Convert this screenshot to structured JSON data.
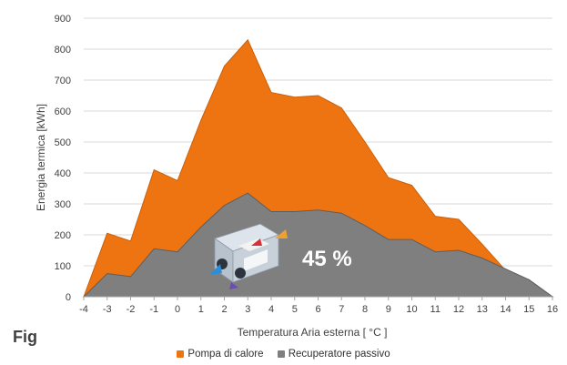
{
  "figure_label": "Fig",
  "chart_data": {
    "type": "area",
    "xlabel": "Temperatura Aria esterna [ °C ]",
    "ylabel": "Energia termica [kWh]",
    "x": [
      -4,
      -3,
      -2,
      -1,
      0,
      1,
      2,
      3,
      4,
      5,
      6,
      7,
      8,
      9,
      10,
      11,
      12,
      13,
      14,
      15,
      16
    ],
    "ylim": [
      0,
      900
    ],
    "yticks": [
      0,
      100,
      200,
      300,
      400,
      500,
      600,
      700,
      800,
      900
    ],
    "xticks": [
      "-4",
      "-3",
      "-2",
      "-1",
      "0",
      "1",
      "2",
      "3",
      "4",
      "5",
      "6",
      "7",
      "8",
      "9",
      "10",
      "11",
      "12",
      "13",
      "14",
      "15",
      "16"
    ],
    "yticklabels": [
      "0",
      "100",
      "200",
      "300",
      "400",
      "500",
      "600",
      "700",
      "800",
      "900"
    ],
    "grid": true,
    "legend_position": "bottom",
    "series": [
      {
        "name": "Pompa di calore",
        "color": "#ee7411",
        "values": [
          0,
          205,
          180,
          410,
          375,
          570,
          745,
          830,
          660,
          645,
          650,
          610,
          500,
          385,
          360,
          260,
          250,
          170,
          85,
          55,
          0
        ]
      },
      {
        "name": "Recuperatore passivo",
        "color": "#7f7f7f",
        "values": [
          0,
          75,
          65,
          155,
          145,
          225,
          295,
          335,
          275,
          275,
          280,
          270,
          230,
          185,
          185,
          145,
          150,
          125,
          90,
          55,
          0
        ]
      }
    ],
    "annotation": "45 %"
  }
}
